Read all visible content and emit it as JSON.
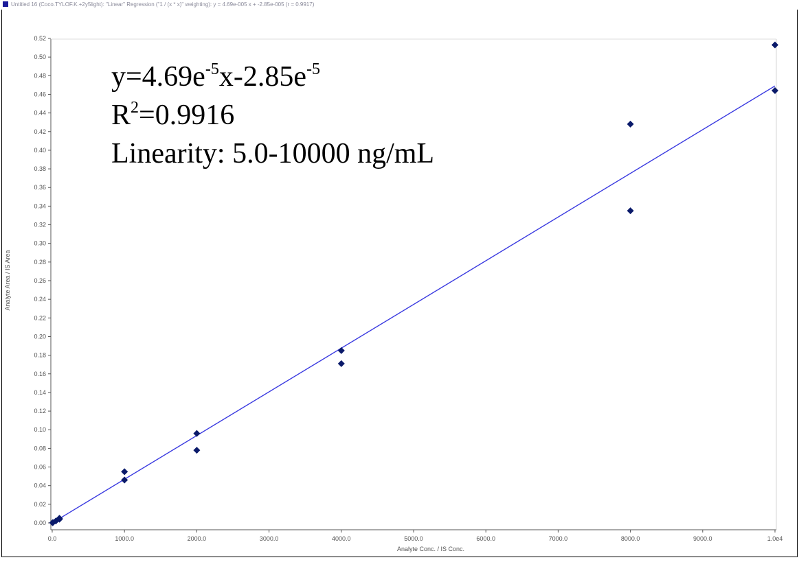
{
  "title_bar": {
    "text": "Untitled 16 (Coco.TYLOF.K.+2y5light): \"Linear\" Regression (\"1 / (x * x)\" weighting): y = 4.69e-005 x + -2.85e-005 (r = 0.9917)"
  },
  "annotation": {
    "eq_a": "y=4.69e",
    "eq_a_exp": "-5",
    "eq_b": "x-2.85e",
    "eq_b_exp": "-5",
    "r2_base": "R",
    "r2_exp": "2",
    "r2_value": "=0.9916",
    "linearity": "Linearity: 5.0-10000 ng/mL"
  },
  "colors": {
    "line": "#3a3ae0",
    "marker": "#0a1a6a",
    "axis": "#555555",
    "border": "#000000"
  },
  "chart_data": {
    "type": "scatter",
    "xlabel": "Analyte Conc. / IS Conc.",
    "ylabel": "Analyte Area / IS Area",
    "xlim": [
      0,
      10000
    ],
    "ylim": [
      0,
      0.52
    ],
    "x_ticks": [
      {
        "value": 0,
        "label": "0.0"
      },
      {
        "value": 1000,
        "label": "1000.0"
      },
      {
        "value": 2000,
        "label": "2000.0"
      },
      {
        "value": 3000,
        "label": "3000.0"
      },
      {
        "value": 4000,
        "label": "4000.0"
      },
      {
        "value": 5000,
        "label": "5000.0"
      },
      {
        "value": 6000,
        "label": "6000.0"
      },
      {
        "value": 7000,
        "label": "7000.0"
      },
      {
        "value": 8000,
        "label": "8000.0"
      },
      {
        "value": 9000,
        "label": "9000.0"
      },
      {
        "value": 10000,
        "label": "1.0e4"
      }
    ],
    "y_ticks": [
      "0.00",
      "0.02",
      "0.04",
      "0.06",
      "0.08",
      "0.10",
      "0.12",
      "0.14",
      "0.16",
      "0.18",
      "0.20",
      "0.22",
      "0.24",
      "0.26",
      "0.28",
      "0.30",
      "0.32",
      "0.34",
      "0.36",
      "0.38",
      "0.40",
      "0.42",
      "0.44",
      "0.46",
      "0.48",
      "0.50",
      "0.52"
    ],
    "points": [
      {
        "x": 5,
        "y": 0.0002
      },
      {
        "x": 10,
        "y": 0.0004
      },
      {
        "x": 50,
        "y": 0.002
      },
      {
        "x": 100,
        "y": 0.004
      },
      {
        "x": 100,
        "y": 0.005
      },
      {
        "x": 1000,
        "y": 0.046
      },
      {
        "x": 1000,
        "y": 0.055
      },
      {
        "x": 2000,
        "y": 0.078
      },
      {
        "x": 2000,
        "y": 0.096
      },
      {
        "x": 4000,
        "y": 0.171
      },
      {
        "x": 4000,
        "y": 0.185
      },
      {
        "x": 8000,
        "y": 0.335
      },
      {
        "x": 8000,
        "y": 0.428
      },
      {
        "x": 10000,
        "y": 0.464
      },
      {
        "x": 10000,
        "y": 0.513
      }
    ],
    "fit_line": {
      "slope": 4.69e-05,
      "intercept": -2.85e-05,
      "x_range": [
        0,
        10000
      ]
    }
  }
}
